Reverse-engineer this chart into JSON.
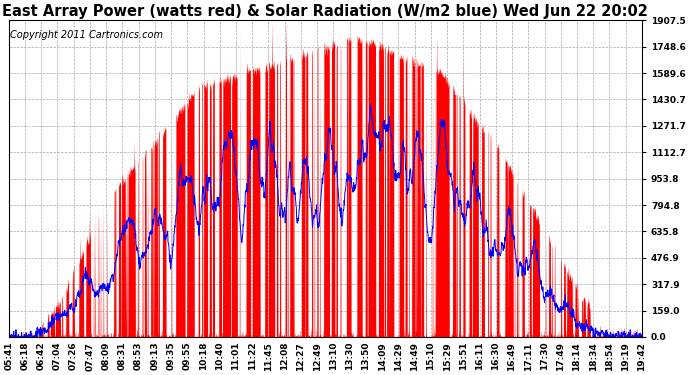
{
  "title": "East Array Power (watts red) & Solar Radiation (W/m2 blue) Wed Jun 22 20:02",
  "copyright": "Copyright 2011 Cartronics.com",
  "yticks": [
    0.0,
    159.0,
    317.9,
    476.9,
    635.8,
    794.8,
    953.8,
    1112.7,
    1271.7,
    1430.7,
    1589.6,
    1748.6,
    1907.5
  ],
  "ymax": 1907.5,
  "xtick_labels": [
    "05:41",
    "06:18",
    "06:42",
    "07:04",
    "07:26",
    "07:47",
    "08:09",
    "08:31",
    "08:53",
    "09:13",
    "09:35",
    "09:55",
    "10:18",
    "10:40",
    "11:01",
    "11:22",
    "11:45",
    "12:08",
    "12:27",
    "12:49",
    "13:10",
    "13:30",
    "13:50",
    "14:09",
    "14:29",
    "14:49",
    "15:10",
    "15:29",
    "15:51",
    "16:11",
    "16:30",
    "16:49",
    "17:11",
    "17:30",
    "17:49",
    "18:14",
    "18:34",
    "18:54",
    "19:19",
    "19:42"
  ],
  "bg_color": "#ffffff",
  "plot_bg_color": "#ffffff",
  "grid_color": "#aaaaaa",
  "red_color": "#ff0000",
  "blue_color": "#0000ff",
  "title_fontsize": 10.5,
  "tick_fontsize": 6.5,
  "copyright_fontsize": 7
}
